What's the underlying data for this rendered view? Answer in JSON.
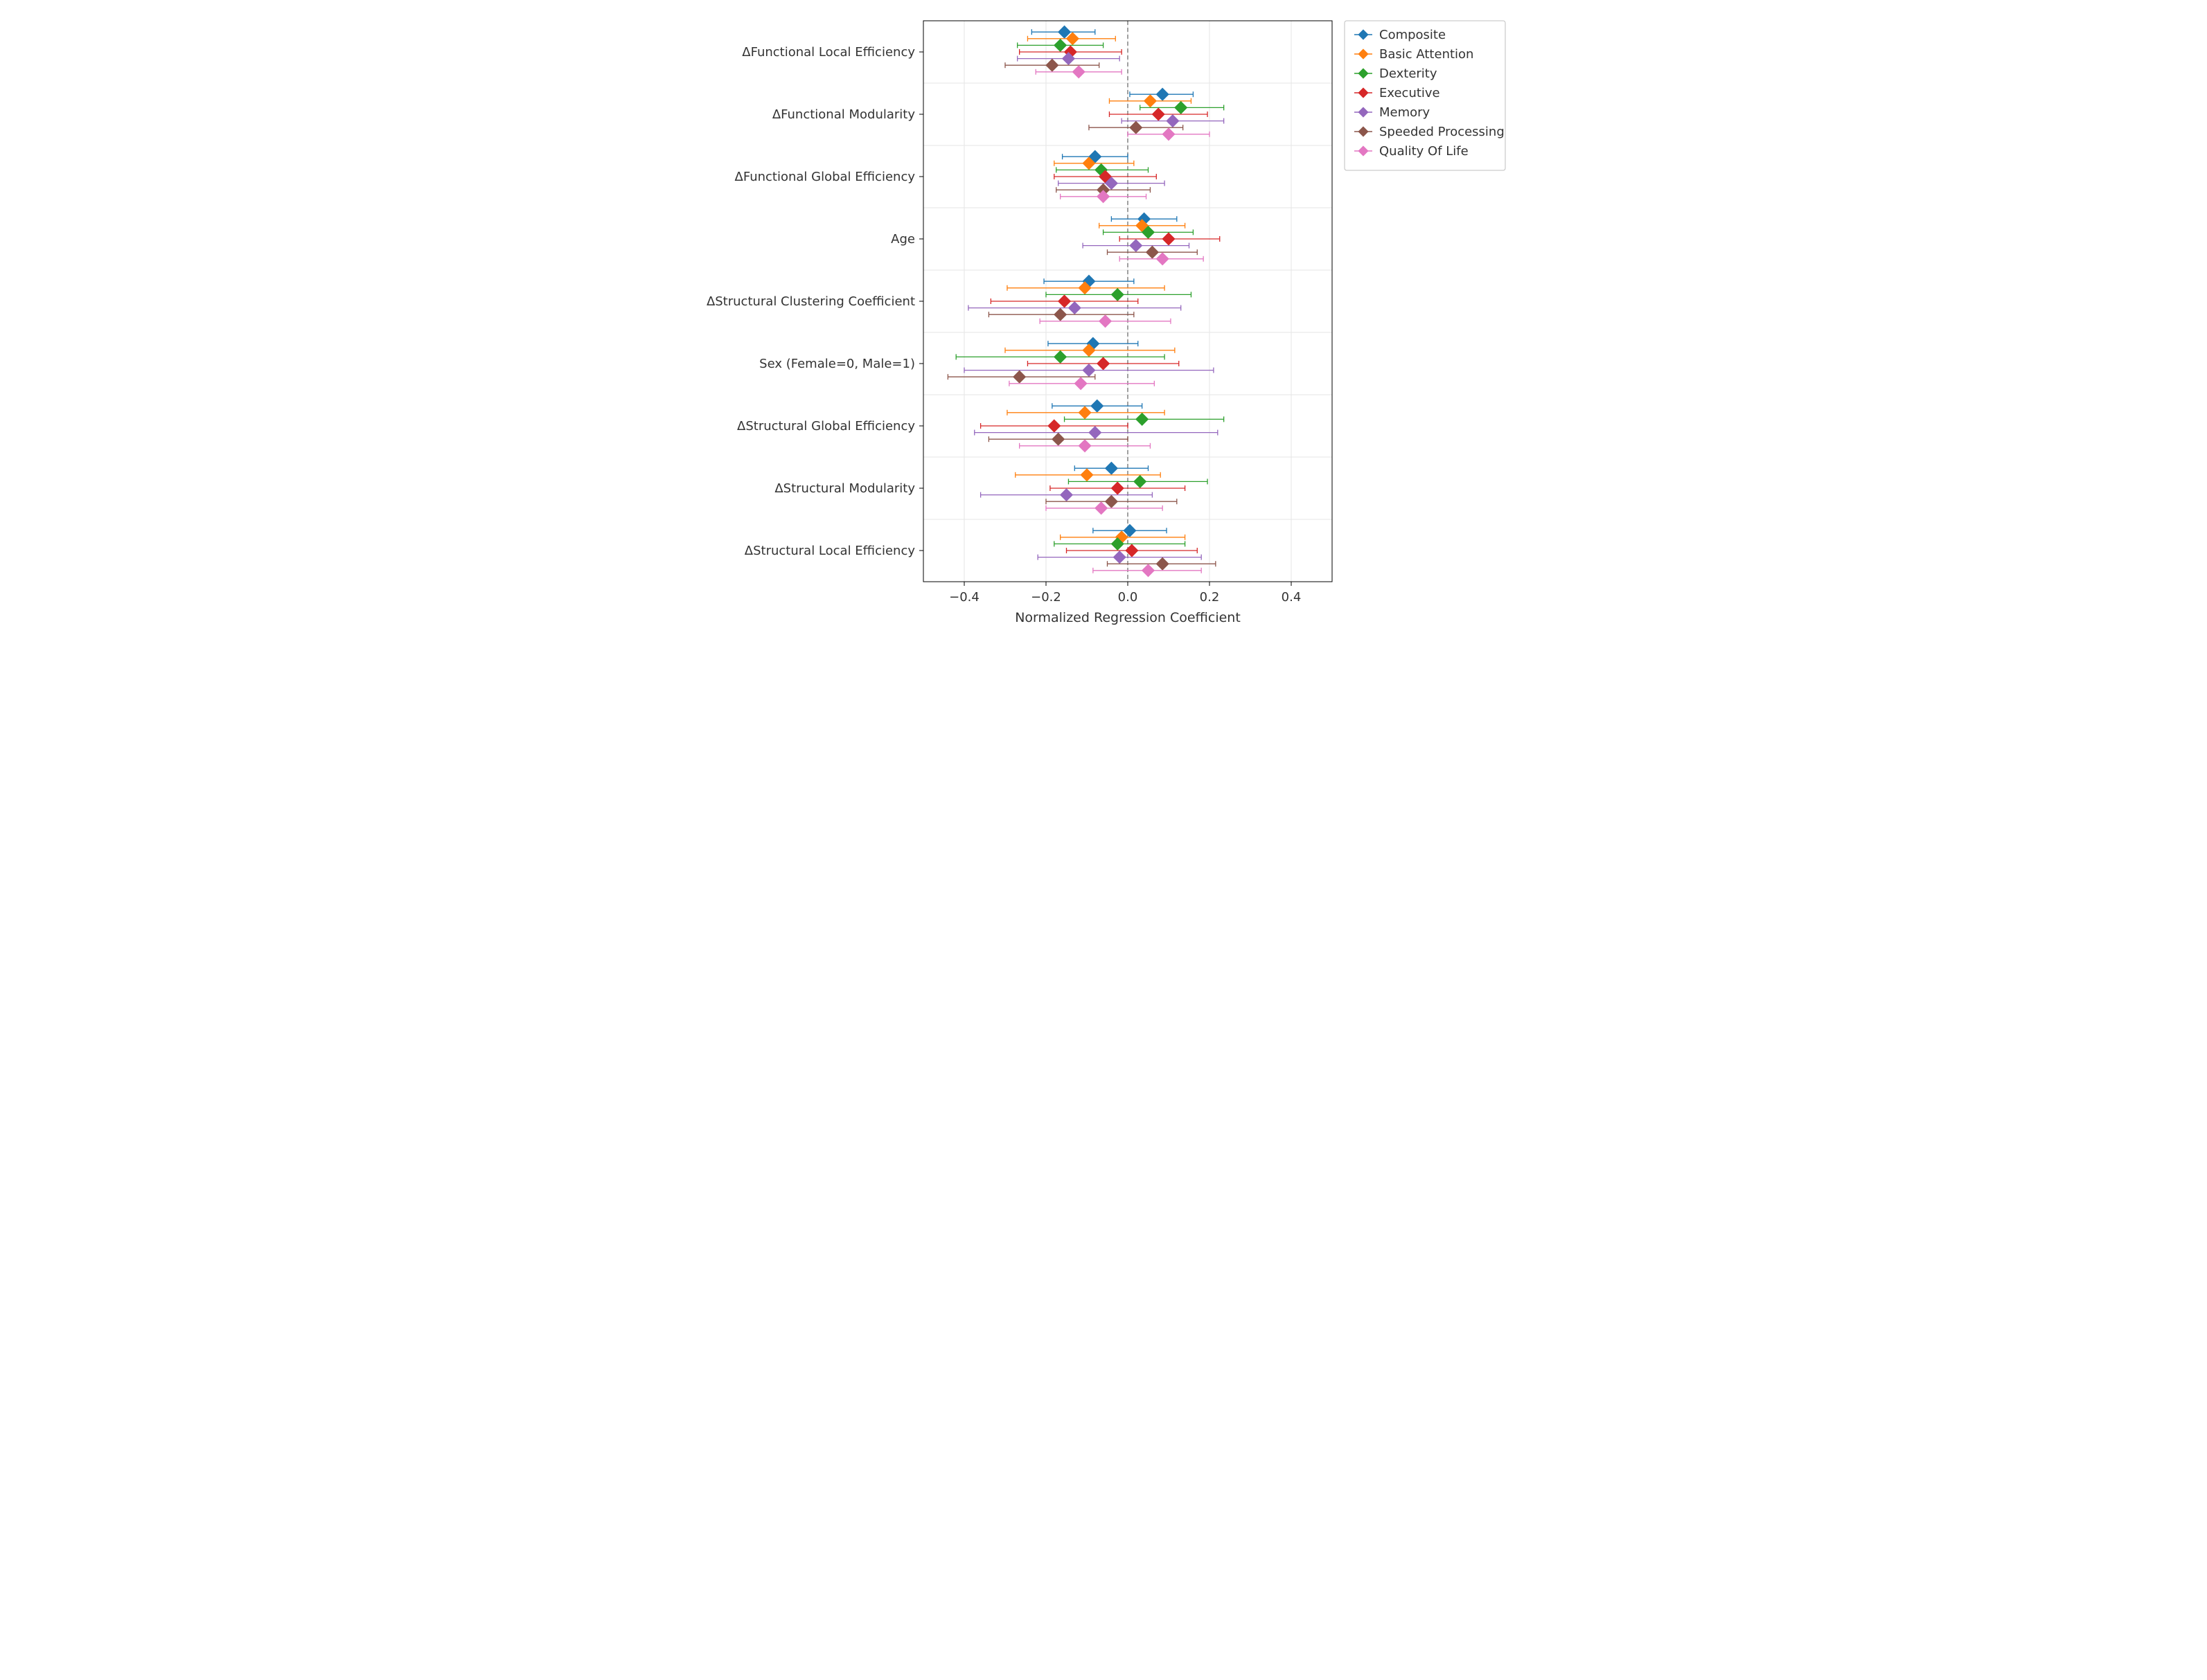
{
  "chart": {
    "type": "forest-plot",
    "background_color": "#ffffff",
    "plot_bg": "#ffffff",
    "spine_color": "#000000",
    "grid_color": "#e5e5e5",
    "zero_line_color": "#808080",
    "zero_line_dash": "6,4",
    "xlabel": "Normalized Regression Coefficient",
    "xlabel_fontsize": 19,
    "tick_fontsize": 18,
    "xlim": [
      -0.5,
      0.5
    ],
    "xticks": [
      -0.4,
      -0.2,
      0.0,
      0.2,
      0.4
    ],
    "xtick_labels": [
      "−0.4",
      "−0.2",
      "0.0",
      "0.2",
      "0.4"
    ],
    "marker": "diamond",
    "marker_size": 9,
    "whisker_cap": 4,
    "line_width": 1.3,
    "categories": [
      "ΔFunctional Local Efficiency",
      "ΔFunctional Modularity",
      "ΔFunctional Global Efficiency",
      "Age",
      "ΔStructural Clustering Coefficient",
      "Sex (Female=0, Male=1)",
      "ΔStructural Global Efficiency",
      "ΔStructural Modularity",
      "ΔStructural Local Efficiency"
    ],
    "series": [
      {
        "name": "Composite",
        "color": "#1f77b4"
      },
      {
        "name": "Basic Attention",
        "color": "#ff7f0e"
      },
      {
        "name": "Dexterity",
        "color": "#2ca02c"
      },
      {
        "name": "Executive",
        "color": "#d62728"
      },
      {
        "name": "Memory",
        "color": "#9467bd"
      },
      {
        "name": "Speeded Processing",
        "color": "#8c564b"
      },
      {
        "name": "Quality Of Life",
        "color": "#e377c2"
      }
    ],
    "data": {
      "ΔFunctional Local Efficiency": [
        {
          "value": -0.155,
          "lo": -0.235,
          "hi": -0.08
        },
        {
          "value": -0.135,
          "lo": -0.245,
          "hi": -0.03
        },
        {
          "value": -0.165,
          "lo": -0.27,
          "hi": -0.06
        },
        {
          "value": -0.14,
          "lo": -0.265,
          "hi": -0.015
        },
        {
          "value": -0.145,
          "lo": -0.27,
          "hi": -0.02
        },
        {
          "value": -0.185,
          "lo": -0.3,
          "hi": -0.07
        },
        {
          "value": -0.12,
          "lo": -0.225,
          "hi": -0.015
        }
      ],
      "ΔFunctional Modularity": [
        {
          "value": 0.085,
          "lo": 0.005,
          "hi": 0.16
        },
        {
          "value": 0.055,
          "lo": -0.045,
          "hi": 0.155
        },
        {
          "value": 0.13,
          "lo": 0.03,
          "hi": 0.235
        },
        {
          "value": 0.075,
          "lo": -0.045,
          "hi": 0.195
        },
        {
          "value": 0.11,
          "lo": -0.015,
          "hi": 0.235
        },
        {
          "value": 0.02,
          "lo": -0.095,
          "hi": 0.135
        },
        {
          "value": 0.1,
          "lo": 0.0,
          "hi": 0.2
        }
      ],
      "ΔFunctional Global Efficiency": [
        {
          "value": -0.08,
          "lo": -0.16,
          "hi": 0.0
        },
        {
          "value": -0.095,
          "lo": -0.18,
          "hi": 0.015
        },
        {
          "value": -0.065,
          "lo": -0.175,
          "hi": 0.05
        },
        {
          "value": -0.055,
          "lo": -0.18,
          "hi": 0.07
        },
        {
          "value": -0.04,
          "lo": -0.17,
          "hi": 0.09
        },
        {
          "value": -0.06,
          "lo": -0.175,
          "hi": 0.055
        },
        {
          "value": -0.06,
          "lo": -0.165,
          "hi": 0.045
        }
      ],
      "Age": [
        {
          "value": 0.04,
          "lo": -0.04,
          "hi": 0.12
        },
        {
          "value": 0.035,
          "lo": -0.07,
          "hi": 0.14
        },
        {
          "value": 0.05,
          "lo": -0.06,
          "hi": 0.16
        },
        {
          "value": 0.1,
          "lo": -0.02,
          "hi": 0.225
        },
        {
          "value": 0.02,
          "lo": -0.11,
          "hi": 0.15
        },
        {
          "value": 0.06,
          "lo": -0.05,
          "hi": 0.17
        },
        {
          "value": 0.085,
          "lo": -0.02,
          "hi": 0.185
        }
      ],
      "ΔStructural Clustering Coefficient": [
        {
          "value": -0.095,
          "lo": -0.205,
          "hi": 0.015
        },
        {
          "value": -0.105,
          "lo": -0.295,
          "hi": 0.09
        },
        {
          "value": -0.025,
          "lo": -0.2,
          "hi": 0.155
        },
        {
          "value": -0.155,
          "lo": -0.335,
          "hi": 0.025
        },
        {
          "value": -0.13,
          "lo": -0.39,
          "hi": 0.13
        },
        {
          "value": -0.165,
          "lo": -0.34,
          "hi": 0.015
        },
        {
          "value": -0.055,
          "lo": -0.215,
          "hi": 0.105
        }
      ],
      "Sex (Female=0, Male=1)": [
        {
          "value": -0.085,
          "lo": -0.195,
          "hi": 0.025
        },
        {
          "value": -0.095,
          "lo": -0.3,
          "hi": 0.115
        },
        {
          "value": -0.165,
          "lo": -0.42,
          "hi": 0.09
        },
        {
          "value": -0.06,
          "lo": -0.245,
          "hi": 0.125
        },
        {
          "value": -0.095,
          "lo": -0.4,
          "hi": 0.21
        },
        {
          "value": -0.265,
          "lo": -0.44,
          "hi": -0.08
        },
        {
          "value": -0.115,
          "lo": -0.29,
          "hi": 0.065
        }
      ],
      "ΔStructural Global Efficiency": [
        {
          "value": -0.075,
          "lo": -0.185,
          "hi": 0.035
        },
        {
          "value": -0.105,
          "lo": -0.295,
          "hi": 0.09
        },
        {
          "value": 0.035,
          "lo": -0.155,
          "hi": 0.235
        },
        {
          "value": -0.18,
          "lo": -0.36,
          "hi": 0.0
        },
        {
          "value": -0.08,
          "lo": -0.375,
          "hi": 0.22
        },
        {
          "value": -0.17,
          "lo": -0.34,
          "hi": 0.0
        },
        {
          "value": -0.105,
          "lo": -0.265,
          "hi": 0.055
        }
      ],
      "ΔStructural Modularity": [
        {
          "value": -0.04,
          "lo": -0.13,
          "hi": 0.05
        },
        {
          "value": -0.1,
          "lo": -0.275,
          "hi": 0.08
        },
        {
          "value": 0.03,
          "lo": -0.145,
          "hi": 0.195
        },
        {
          "value": -0.025,
          "lo": -0.19,
          "hi": 0.14
        },
        {
          "value": -0.15,
          "lo": -0.36,
          "hi": 0.06
        },
        {
          "value": -0.04,
          "lo": -0.2,
          "hi": 0.12
        },
        {
          "value": -0.065,
          "lo": -0.2,
          "hi": 0.085
        }
      ],
      "ΔStructural Local Efficiency": [
        {
          "value": 0.005,
          "lo": -0.085,
          "hi": 0.095
        },
        {
          "value": -0.015,
          "lo": -0.165,
          "hi": 0.14
        },
        {
          "value": -0.025,
          "lo": -0.18,
          "hi": 0.14
        },
        {
          "value": 0.01,
          "lo": -0.15,
          "hi": 0.17
        },
        {
          "value": -0.02,
          "lo": -0.22,
          "hi": 0.18
        },
        {
          "value": 0.085,
          "lo": -0.05,
          "hi": 0.215
        },
        {
          "value": 0.05,
          "lo": -0.085,
          "hi": 0.18
        }
      ]
    },
    "legend": {
      "position": "upper-right-outside",
      "frame": true,
      "frame_color": "#bfbfbf",
      "bg": "#ffffff",
      "fontsize": 18
    }
  }
}
